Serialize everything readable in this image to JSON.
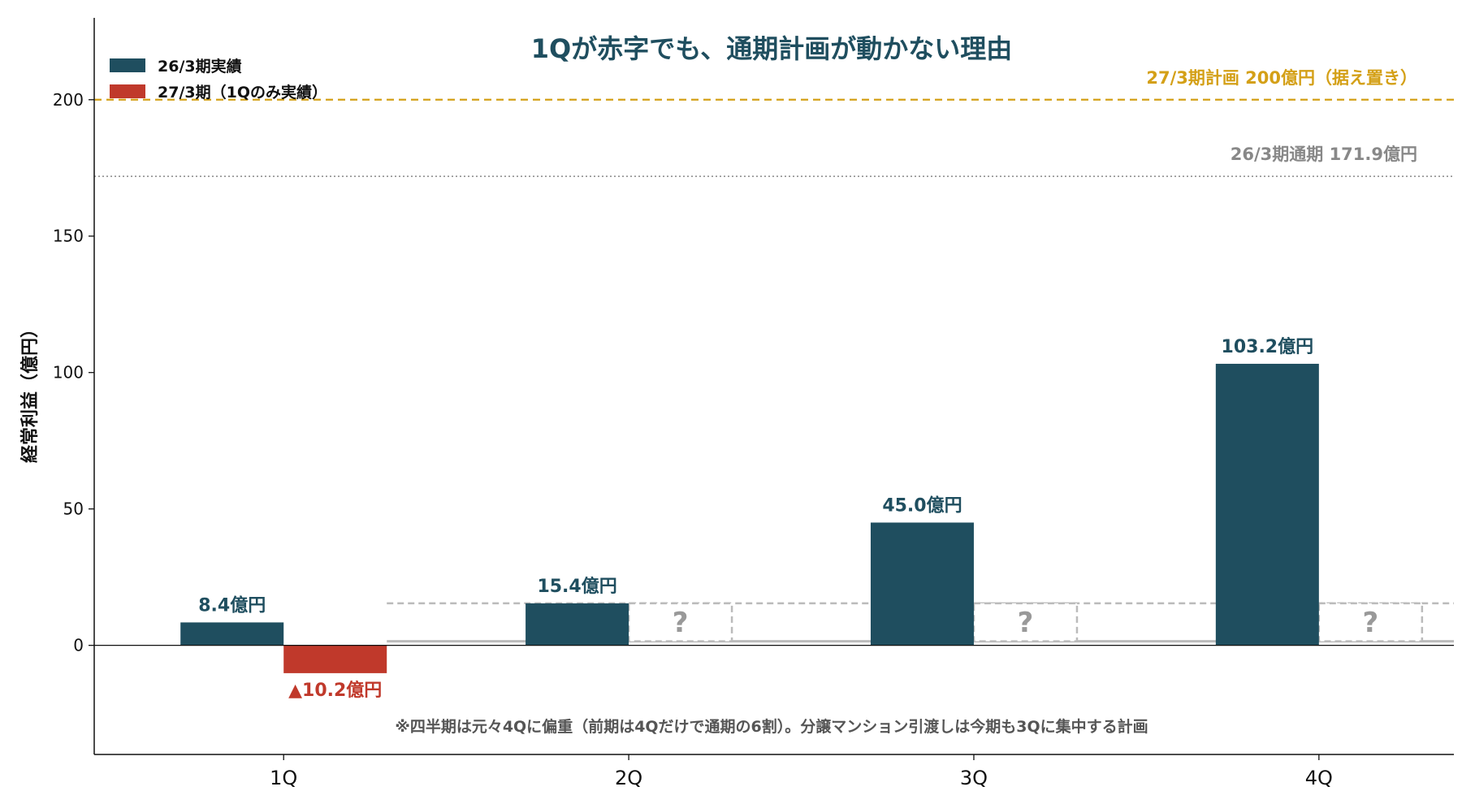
{
  "chart_data": {
    "type": "bar",
    "title": "1Qが赤字でも、通期計画が動かない理由",
    "ylabel": "経常利益（億円）",
    "xlabel": "",
    "ylim": [
      -40,
      230
    ],
    "yticks": [
      0,
      50,
      100,
      150,
      200
    ],
    "categories": [
      "1Q",
      "2Q",
      "3Q",
      "4Q"
    ],
    "series": [
      {
        "name": "26/3期実績",
        "color": "#1f4e5f",
        "values": [
          8.4,
          15.4,
          45.0,
          103.2
        ],
        "labels": [
          "8.4億円",
          "15.4億円",
          "45.0億円",
          "103.2億円"
        ]
      },
      {
        "name": "27/3期（1Qのみ実績）",
        "color": "#c0392b",
        "values": [
          -10.2,
          null,
          null,
          null
        ],
        "labels": [
          "▲10.2億円",
          "",
          "",
          ""
        ]
      }
    ],
    "unknown_placeholder": {
      "label": "?",
      "categories": [
        "2Q",
        "3Q",
        "4Q"
      ],
      "value": 15.4,
      "color": "#bbbbbb"
    },
    "reference_lines": [
      {
        "value": 200,
        "label": "27/3期計画 200億円（据え置き）",
        "style": "dashed",
        "color": "#d4a017"
      },
      {
        "value": 171.9,
        "label": "26/3期通期 171.9億円",
        "style": "dotted",
        "color": "#888888"
      }
    ],
    "legend": {
      "position": "top-left"
    },
    "grid": false,
    "note": "※四半期は元々4Qに偏重（前期は4Qだけで通期の6割）。分譲マンション引渡しは今期も3Qに集中する計画"
  }
}
